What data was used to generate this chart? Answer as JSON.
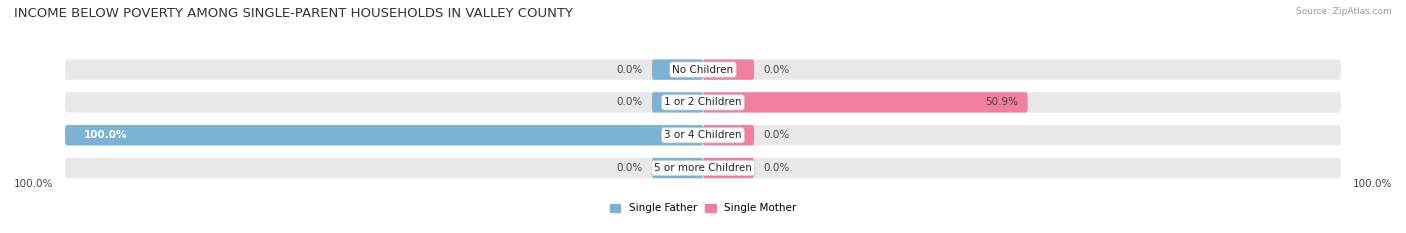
{
  "title": "INCOME BELOW POVERTY AMONG SINGLE-PARENT HOUSEHOLDS IN VALLEY COUNTY",
  "source": "Source: ZipAtlas.com",
  "categories": [
    "No Children",
    "1 or 2 Children",
    "3 or 4 Children",
    "5 or more Children"
  ],
  "single_father": [
    0.0,
    0.0,
    100.0,
    0.0
  ],
  "single_mother": [
    0.0,
    50.9,
    0.0,
    0.0
  ],
  "father_color": "#7ab3d4",
  "mother_color": "#f07fa0",
  "background_row_color": "#e8e8e8",
  "title_fontsize": 9.5,
  "label_fontsize": 7.5,
  "value_fontsize": 7.5,
  "axis_max": 100.0,
  "legend_father": "Single Father",
  "legend_mother": "Single Mother",
  "stub_size": 8.0
}
